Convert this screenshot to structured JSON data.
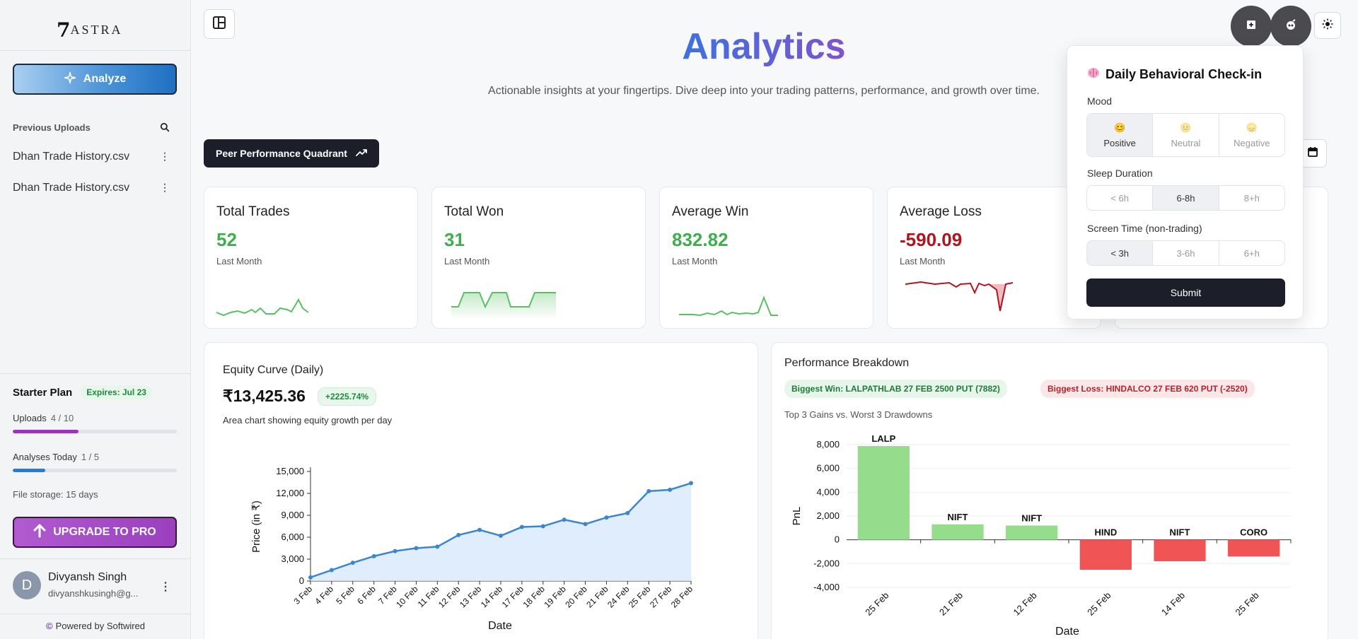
{
  "sidebar": {
    "logo_mark": "7",
    "logo_text": "ASTRA",
    "analyze_label": "Analyze",
    "previous_uploads_label": "Previous Uploads",
    "uploads": [
      "Dhan Trade History.csv",
      "Dhan Trade History.csv"
    ],
    "plan": {
      "name": "Starter Plan",
      "expires": "Expires: Jul 23",
      "uploads_label": "Uploads",
      "uploads_value": "4 / 10",
      "uploads_fraction": 0.4,
      "analyses_label": "Analyses Today",
      "analyses_value": "1 / 5",
      "analyses_fraction": 0.2,
      "storage": "File storage: 15 days"
    },
    "upgrade_label": "UPGRADE TO PRO",
    "user": {
      "initial": "D",
      "name": "Divyansh Singh",
      "email": "divyanshkusingh@g..."
    },
    "powered_by": "Powered by Softwired"
  },
  "header": {
    "title": "Analytics",
    "subtitle": "Actionable insights at your fingertips. Dive deep into your trading patterns, performance, and growth over time.",
    "peer_button": "Peer Performance Quadrant"
  },
  "stats": [
    {
      "label": "Total Trades",
      "value": "52",
      "sub": "Last Month",
      "color": "#3fae4f"
    },
    {
      "label": "Total Won",
      "value": "31",
      "sub": "Last Month",
      "color": "#3fae4f"
    },
    {
      "label": "Average Win",
      "value": "832.82",
      "sub": "Last Month",
      "color": "#3fae4f"
    },
    {
      "label": "Average Loss",
      "value": "-590.09",
      "sub": "Last Month",
      "color": "#b3121f"
    }
  ],
  "equity": {
    "title": "Equity Curve (Daily)",
    "value": "₹13,425.36",
    "change": "+2225.74%",
    "description": "Area chart showing equity growth per day"
  },
  "performance": {
    "title": "Performance Breakdown",
    "biggest_win": "Biggest Win: LALPATHLAB 27 FEB 2500 PUT (7882)",
    "biggest_loss": "Biggest Loss: HINDALCO 27 FEB 620 PUT (-2520)",
    "subtitle": "Top 3 Gains vs. Worst 3 Drawdowns"
  },
  "checkin": {
    "title": "Daily Behavioral Check-in",
    "mood_label": "Mood",
    "mood_options": [
      {
        "emoji": "😊",
        "label": "Positive",
        "active": true
      },
      {
        "emoji": "😐",
        "label": "Neutral",
        "active": false
      },
      {
        "emoji": "😞",
        "label": "Negative",
        "active": false
      }
    ],
    "sleep_label": "Sleep Duration",
    "sleep_options": [
      "< 6h",
      "6-8h",
      "8+h"
    ],
    "sleep_active": 1,
    "screen_label": "Screen Time (non-trading)",
    "screen_options": [
      "< 3h",
      "3-6h",
      "6+h"
    ],
    "screen_active": 0,
    "submit_label": "Submit"
  },
  "chart_data": [
    {
      "type": "area",
      "ylabel": "Price (in ₹)",
      "xlabel": "Date",
      "ylim": [
        0,
        15000
      ],
      "yticks": [
        "0",
        "3,000",
        "6,000",
        "9,000",
        "12,000",
        "15,000"
      ],
      "x": [
        "3 Feb",
        "4 Feb",
        "5 Feb",
        "6 Feb",
        "7 Feb",
        "10 Feb",
        "11 Feb",
        "12 Feb",
        "13 Feb",
        "14 Feb",
        "17 Feb",
        "18 Feb",
        "19 Feb",
        "20 Feb",
        "21 Feb",
        "24 Feb",
        "25 Feb",
        "27 Feb",
        "28 Feb"
      ],
      "series": [
        {
          "values": [
            500,
            1500,
            2500,
            3400,
            4100,
            4500,
            4700,
            6300,
            7000,
            6200,
            7400,
            7500,
            8400,
            7800,
            8700,
            9300,
            12300,
            12500,
            13400
          ]
        }
      ]
    },
    {
      "type": "bar",
      "ylabel": "PnL",
      "xlabel": "Date",
      "ylim": [
        -4000,
        8000
      ],
      "yticks": [
        "-4,000",
        "-2,000",
        "0",
        "2,000",
        "4,000",
        "6,000",
        "8,000"
      ],
      "categories": [
        "25 Feb",
        "21 Feb",
        "12 Feb",
        "25 Feb",
        "14 Feb",
        "25 Feb"
      ],
      "bar_labels": [
        "LALP",
        "NIFT",
        "NIFT",
        "HIND",
        "NIFT",
        "CORO"
      ],
      "values": [
        7882,
        1300,
        1200,
        -2520,
        -1800,
        -1400
      ],
      "colors": {
        "positive": "#95dc8d",
        "negative": "#f05454"
      }
    }
  ]
}
